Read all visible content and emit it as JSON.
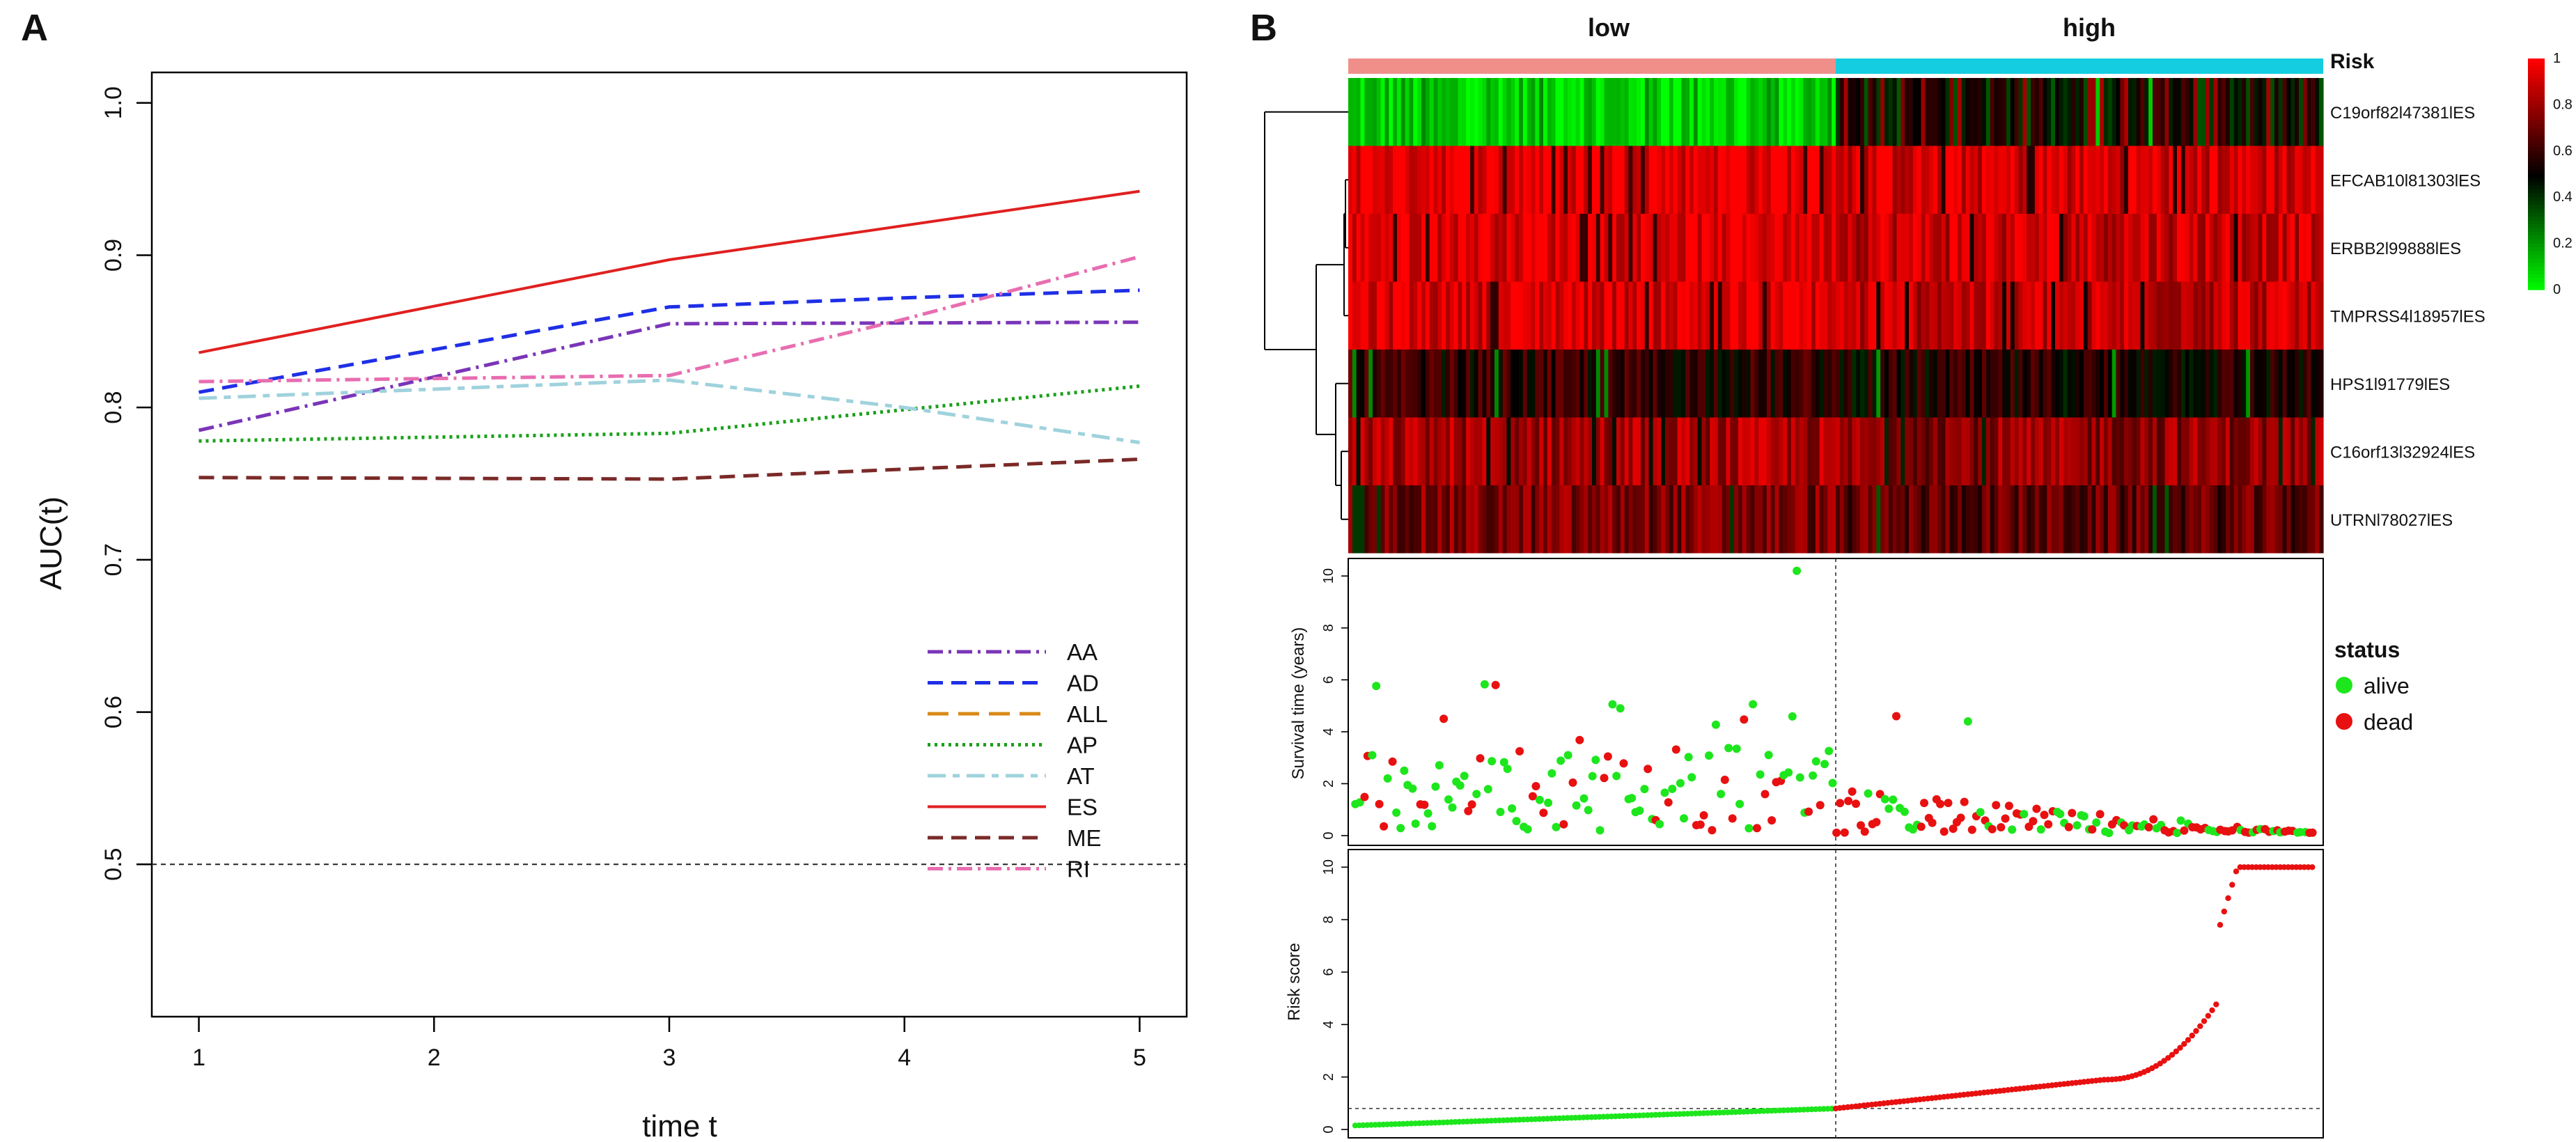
{
  "panels": {
    "A": {
      "label": "A"
    },
    "B": {
      "label": "B"
    }
  },
  "colors": {
    "AA": "#7a35b8",
    "AD": "#1f2fe6",
    "ALL": "#d98a1a",
    "AP": "#1aa01a",
    "AT": "#9fd2dd",
    "ES": "#e02020",
    "ME": "#7a2a28",
    "RI": "#e86db0",
    "risk_low": "#f08f8a",
    "risk_high": "#14cde0",
    "heat_low": "#00ff00",
    "heat_mid": "#000000",
    "heat_high": "#ff0000",
    "alive": "#1de61d",
    "dead": "#e81010"
  },
  "chart_data": [
    {
      "type": "line",
      "title": "",
      "xlabel": "time t",
      "ylabel": "AUC(t)",
      "x": [
        1,
        2,
        3,
        4,
        5
      ],
      "xlim": [
        0.8,
        5.2
      ],
      "ylim": [
        0.4,
        1.02
      ],
      "xticks": [
        1,
        2,
        3,
        4,
        5
      ],
      "yticks": [
        "0.5",
        "0.6",
        "0.7",
        "0.8",
        "0.9",
        "1.0"
      ],
      "reference_line": 0.5,
      "legend_position": "bottom-right",
      "series": [
        {
          "name": "AA",
          "x": [
            1,
            3,
            5
          ],
          "values": [
            0.785,
            0.855,
            0.856
          ],
          "dash": "dashdot"
        },
        {
          "name": "AD",
          "x": [
            1,
            3,
            4,
            5
          ],
          "values": [
            0.81,
            0.866,
            0.872,
            0.877
          ],
          "dash": "dashed"
        },
        {
          "name": "ALL",
          "x": [],
          "values": [],
          "dash": "longdash"
        },
        {
          "name": "AP",
          "x": [
            1,
            3,
            5
          ],
          "values": [
            0.778,
            0.783,
            0.814
          ],
          "dash": "dotted"
        },
        {
          "name": "AT",
          "x": [
            1,
            3,
            4,
            5
          ],
          "values": [
            0.806,
            0.818,
            0.8,
            0.777
          ],
          "dash": "twodash"
        },
        {
          "name": "ES",
          "x": [
            1,
            3,
            5
          ],
          "values": [
            0.836,
            0.897,
            0.942
          ],
          "dash": "solid"
        },
        {
          "name": "ME",
          "x": [
            1,
            3,
            5
          ],
          "values": [
            0.754,
            0.753,
            0.766
          ],
          "dash": "dashed"
        },
        {
          "name": "RI",
          "x": [
            1,
            3,
            4,
            5
          ],
          "values": [
            0.817,
            0.821,
            0.858,
            0.899
          ],
          "dash": "dashdot"
        }
      ]
    },
    {
      "type": "heatmap",
      "top_groups": [
        "low",
        "high"
      ],
      "annotation_label": "Risk",
      "n_samples": 240,
      "low_fraction": 0.5,
      "colorbar_ticks": [
        "1",
        "0.8",
        "0.6",
        "0.4",
        "0.2",
        "0"
      ],
      "rows": [
        {
          "name": "C19orf82l47381lES",
          "base_low": 0.1,
          "base_high": 0.45
        },
        {
          "name": "EFCAB10l81303lES",
          "base_low": 0.97,
          "base_high": 0.92
        },
        {
          "name": "ERBB2l99888lES",
          "base_low": 0.96,
          "base_high": 0.9
        },
        {
          "name": "TMPRSS4l18957lES",
          "base_low": 0.94,
          "base_high": 0.88
        },
        {
          "name": "HPS1l91779lES",
          "base_low": 0.58,
          "base_high": 0.55
        },
        {
          "name": "C16orf13l32924lES",
          "base_low": 0.82,
          "base_high": 0.78
        },
        {
          "name": "UTRNl78027lES",
          "base_low": 0.74,
          "base_high": 0.68
        }
      ]
    },
    {
      "type": "scatter",
      "ylabel": "Survival time (years)",
      "ylim": [
        0,
        10.3
      ],
      "yticks": [
        "0",
        "2",
        "4",
        "6",
        "8",
        "10"
      ],
      "legend_title": "status",
      "legend": [
        "alive",
        "dead"
      ],
      "cutoff_index": 120,
      "n_samples": 240
    },
    {
      "type": "scatter",
      "ylabel": "Risk score",
      "ylim": [
        0,
        10.3
      ],
      "yticks": [
        "0",
        "2",
        "4",
        "6",
        "8",
        "10"
      ],
      "cutoff_value": 0.8,
      "n_samples": 240
    }
  ]
}
